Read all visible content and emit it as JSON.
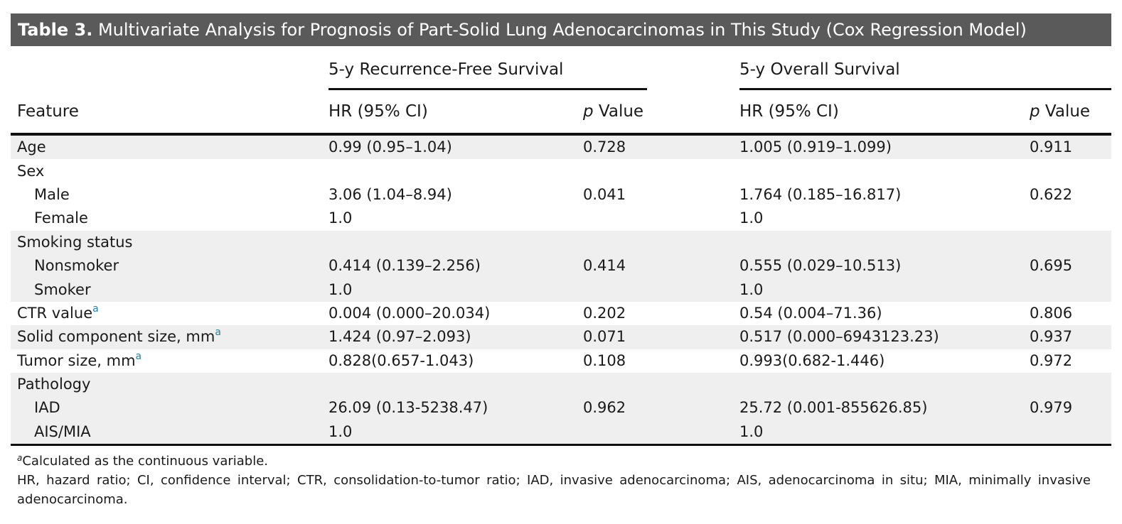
{
  "title": {
    "number": "Table 3.",
    "text": " Multivariate Analysis for Prognosis of Part-Solid Lung Adenocarcinomas in This Study (Cox Regression Model)"
  },
  "header": {
    "group_rfs": "5-y Recurrence-Free Survival",
    "group_os": "5-y Overall Survival",
    "feature": "Feature",
    "hr": "HR (95% CI)",
    "p_italic": "p",
    "p_rest": " Value"
  },
  "rows": [
    {
      "label": "Age",
      "rfs_hr": "0.99 (0.95–1.04)",
      "rfs_p": "0.728",
      "os_hr": "1.005 (0.919–1.099)",
      "os_p": "0.911"
    },
    {
      "label": "Sex",
      "rfs_hr": "",
      "rfs_p": "",
      "os_hr": "",
      "os_p": ""
    },
    {
      "label": "Male",
      "rfs_hr": "3.06 (1.04–8.94)",
      "rfs_p": "0.041",
      "os_hr": "1.764 (0.185–16.817)",
      "os_p": "0.622"
    },
    {
      "label": "Female",
      "rfs_hr": "1.0",
      "rfs_p": "",
      "os_hr": "1.0",
      "os_p": ""
    },
    {
      "label": "Smoking status",
      "rfs_hr": "",
      "rfs_p": "",
      "os_hr": "",
      "os_p": ""
    },
    {
      "label": "Nonsmoker",
      "rfs_hr": "0.414 (0.139–2.256)",
      "rfs_p": "0.414",
      "os_hr": "0.555 (0.029–10.513)",
      "os_p": "0.695"
    },
    {
      "label": "Smoker",
      "rfs_hr": "1.0",
      "rfs_p": "",
      "os_hr": "1.0",
      "os_p": ""
    },
    {
      "label": "CTR value",
      "sup": "a",
      "rfs_hr": "0.004 (0.000–20.034)",
      "rfs_p": "0.202",
      "os_hr": "0.54 (0.004–71.36)",
      "os_p": "0.806"
    },
    {
      "label": "Solid component size, mm",
      "sup": "a",
      "rfs_hr": "1.424 (0.97–2.093)",
      "rfs_p": "0.071",
      "os_hr": "0.517 (0.000–6943123.23)",
      "os_p": "0.937"
    },
    {
      "label": "Tumor size, mm",
      "sup": "a",
      "rfs_hr": "0.828(0.657-1.043)",
      "rfs_p": "0.108",
      "os_hr": "0.993(0.682-1.446)",
      "os_p": "0.972"
    },
    {
      "label": "Pathology",
      "rfs_hr": "",
      "rfs_p": "",
      "os_hr": "",
      "os_p": ""
    },
    {
      "label": "IAD",
      "rfs_hr": "26.09 (0.13-5238.47)",
      "rfs_p": "0.962",
      "os_hr": "25.72 (0.001-855626.85)",
      "os_p": "0.979"
    },
    {
      "label": "AIS/MIA",
      "rfs_hr": "1.0",
      "rfs_p": "",
      "os_hr": "1.0",
      "os_p": ""
    }
  ],
  "footnotes": {
    "a_marker": "a",
    "a_text": "Calculated as the continuous variable.",
    "abbrev": "HR, hazard ratio; CI, confidence interval; CTR, consolidation-to-tumor ratio; IAD, invasive adenocarcinoma; AIS, adenocarcinoma in situ; MIA, minimally invasive adenocarcinoma."
  }
}
